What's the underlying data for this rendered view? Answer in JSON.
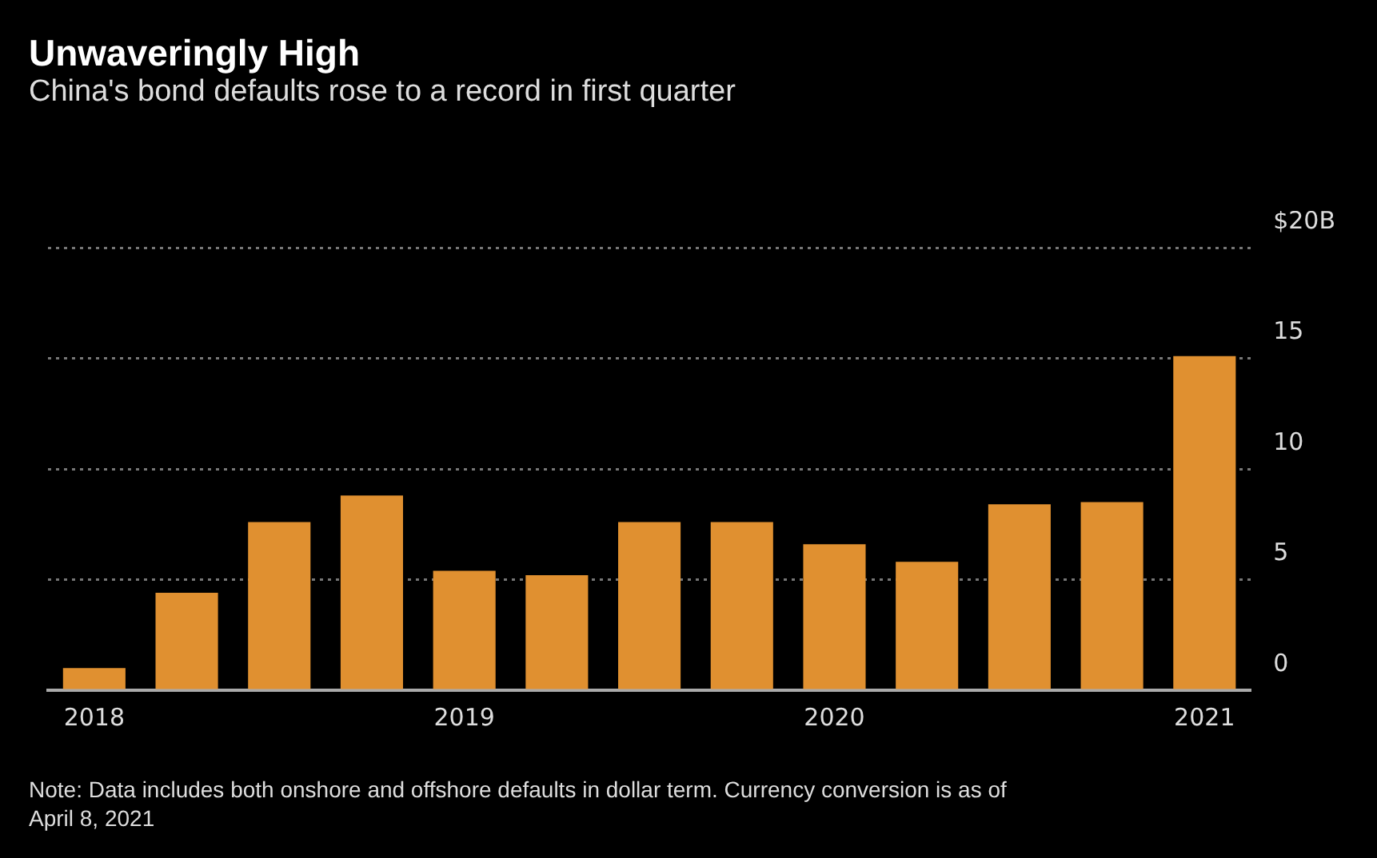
{
  "chart_data": {
    "type": "bar",
    "title": "Unwaveringly High",
    "subtitle": "China's bond defaults rose to a record in first quarter",
    "categories": [
      "2018",
      null,
      null,
      null,
      "2019",
      null,
      null,
      null,
      "2020",
      null,
      null,
      null,
      "2021"
    ],
    "values": [
      1.0,
      4.4,
      7.6,
      8.8,
      5.4,
      5.2,
      7.6,
      7.6,
      6.6,
      5.8,
      8.4,
      8.5,
      15.1
    ],
    "color": "#e09030",
    "ylim": [
      0,
      20
    ],
    "yticks": [
      0,
      5,
      10,
      15,
      {
        "value": 20,
        "label": "$20B"
      }
    ],
    "grid": "y",
    "legend": false,
    "annotations": [
      "Note: Data includes both onshore and offshore defaults in dollar term. Currency conversion is as of April 8, 2021"
    ]
  }
}
